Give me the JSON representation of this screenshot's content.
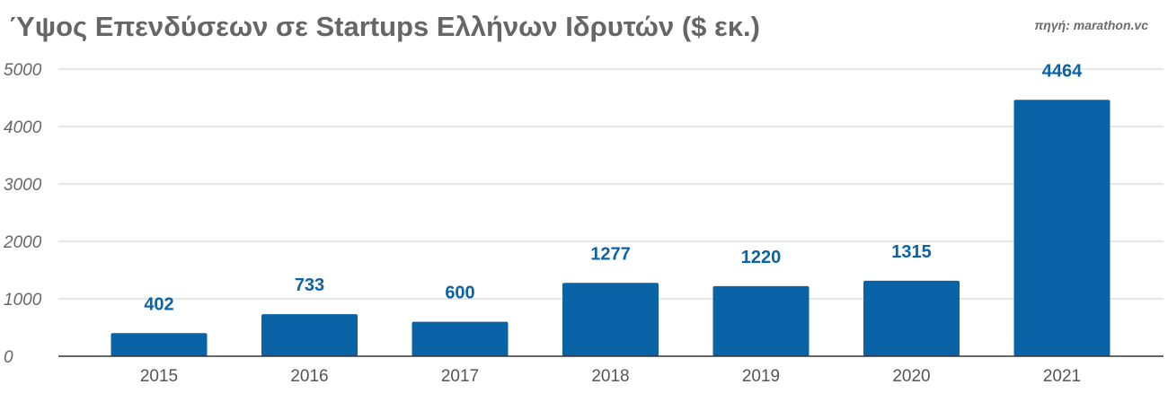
{
  "chart_data": {
    "type": "bar",
    "title": "Ύψος Επενδύσεων σε Startups Ελλήνων Ιδρυτών ($ εκ.)",
    "source": "πηγή: marathon.vc",
    "categories": [
      "2015",
      "2016",
      "2017",
      "2018",
      "2019",
      "2020",
      "2021"
    ],
    "values": [
      402,
      733,
      600,
      1277,
      1220,
      1315,
      4464
    ],
    "data_labels": [
      "402",
      "733",
      "600",
      "1277",
      "1220",
      "1315",
      "4464"
    ],
    "yticks": [
      "0",
      "1000",
      "2000",
      "3000",
      "4000",
      "5000"
    ],
    "ylim": [
      0,
      5000
    ],
    "xlabel": "",
    "ylabel": "",
    "grid": true,
    "legend": "none",
    "bar_color": "#0b63a7",
    "label_color": "#0b63a7"
  }
}
